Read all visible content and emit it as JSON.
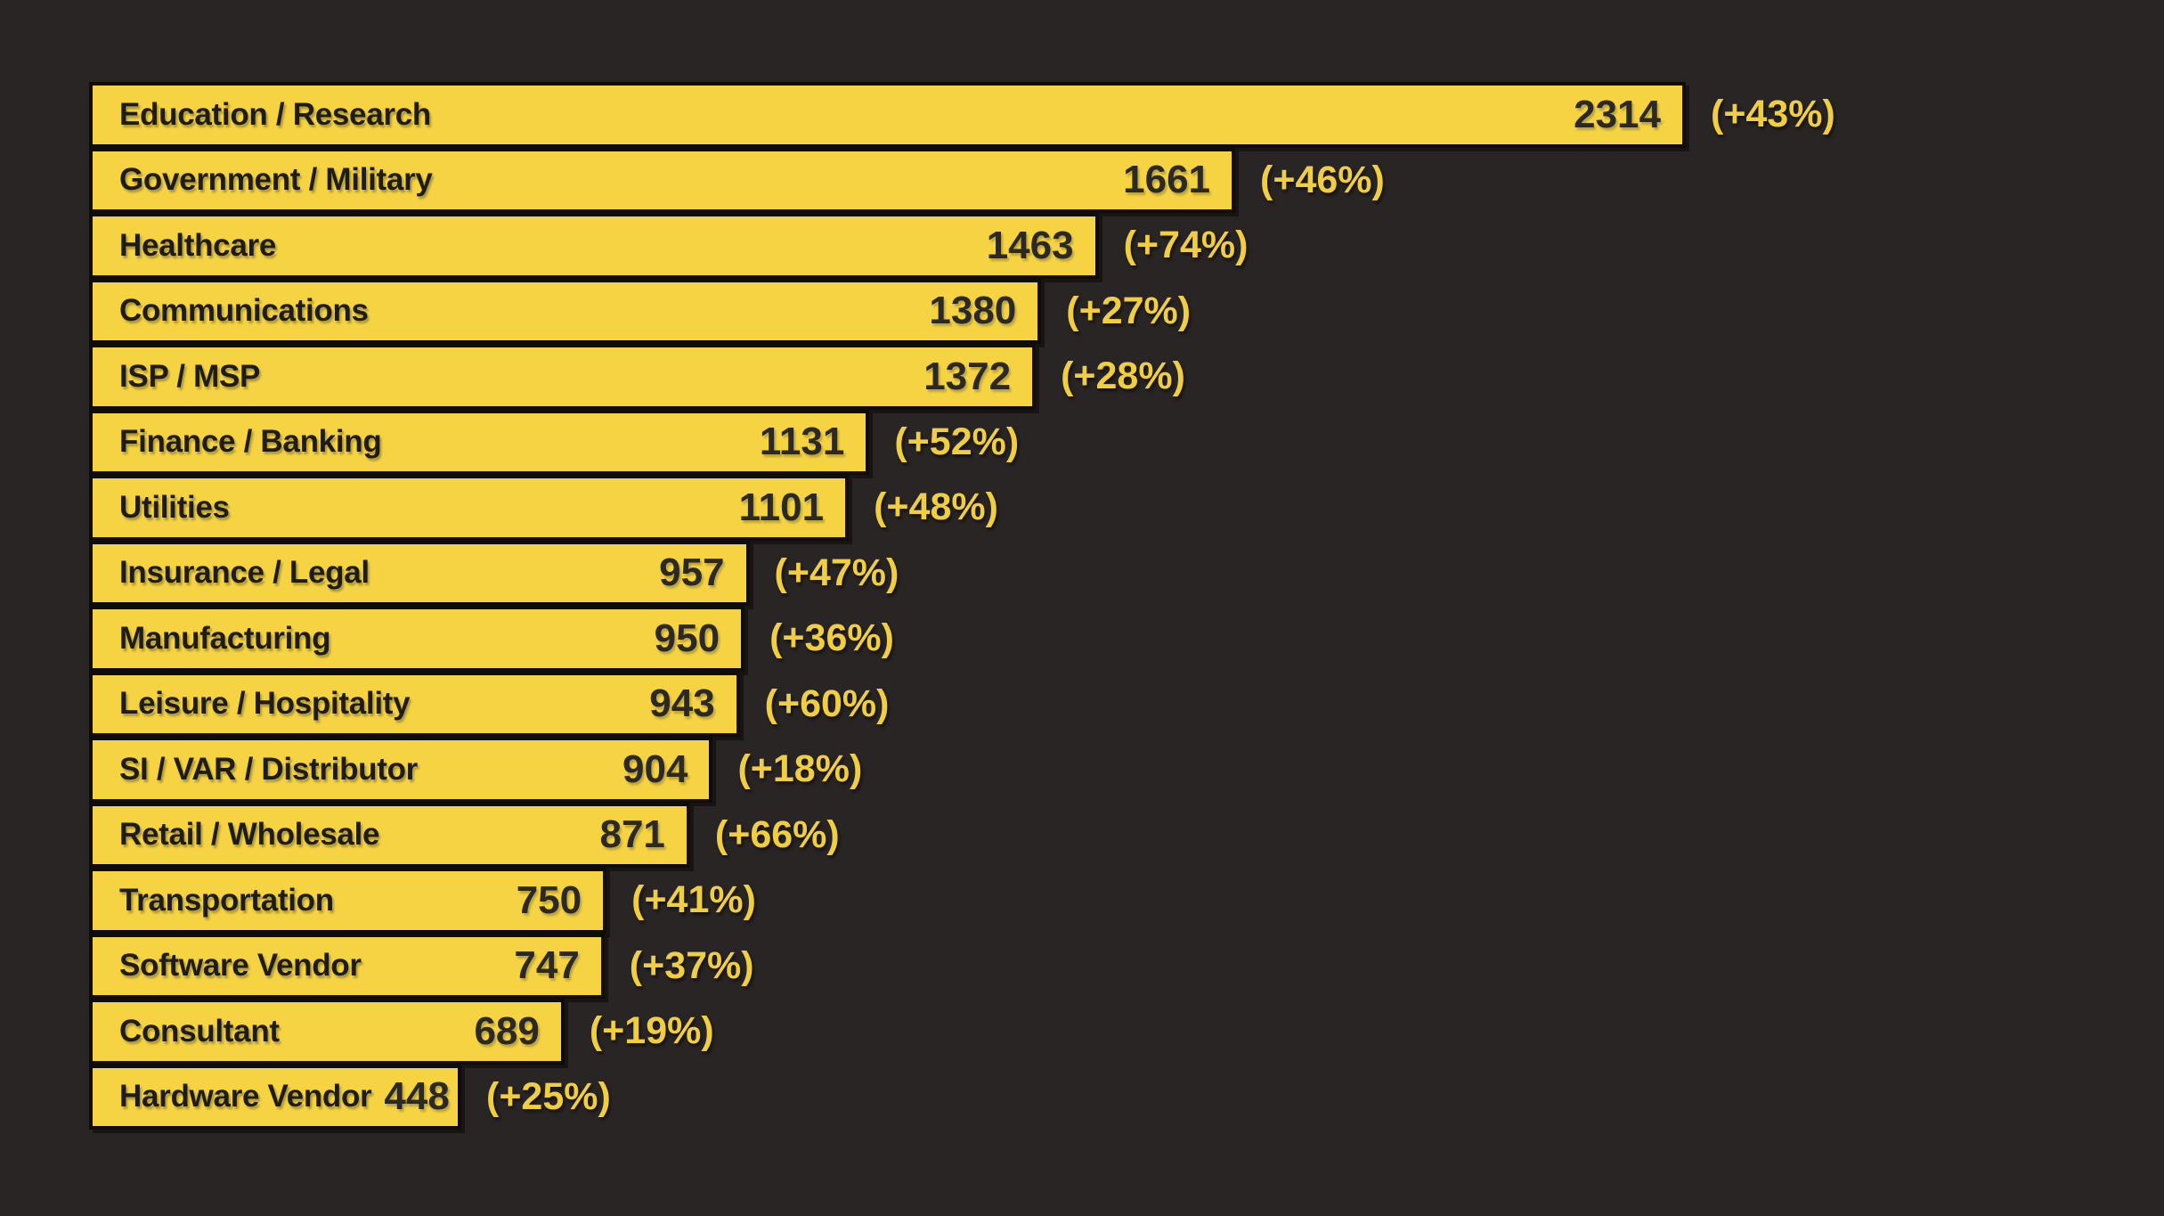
{
  "chart_data": {
    "type": "bar",
    "orientation": "horizontal",
    "title": "",
    "xlabel": "",
    "ylabel": "",
    "xlim": [
      0,
      2314
    ],
    "grid": false,
    "legend": false,
    "max_value": 2314,
    "categories": [
      "Education / Research",
      "Government / Military",
      "Healthcare",
      "Communications",
      "ISP / MSP",
      "Finance / Banking",
      "Utilities",
      "Insurance / Legal",
      "Manufacturing",
      "Leisure / Hospitality",
      "SI / VAR / Distributor",
      "Retail / Wholesale",
      "Transportation",
      "Software Vendor",
      "Consultant",
      "Hardware Vendor"
    ],
    "values": [
      2314,
      1661,
      1463,
      1380,
      1372,
      1131,
      1101,
      957,
      950,
      943,
      904,
      871,
      750,
      747,
      689,
      448
    ],
    "change_labels": [
      "(+43%)",
      "(+46%)",
      "(+74%)",
      "(+27%)",
      "(+28%)",
      "(+52%)",
      "(+48%)",
      "(+47%)",
      "(+36%)",
      "(+60%)",
      "(+18%)",
      "(+66%)",
      "(+41%)",
      "(+37%)",
      "(+19%)",
      "(+25%)"
    ],
    "bars": [
      {
        "label": "Education / Research",
        "value": 2314,
        "change": "(+43%)"
      },
      {
        "label": "Government / Military",
        "value": 1661,
        "change": "(+46%)"
      },
      {
        "label": "Healthcare",
        "value": 1463,
        "change": "(+74%)"
      },
      {
        "label": "Communications",
        "value": 1380,
        "change": "(+27%)"
      },
      {
        "label": "ISP / MSP",
        "value": 1372,
        "change": "(+28%)"
      },
      {
        "label": "Finance / Banking",
        "value": 1131,
        "change": "(+52%)"
      },
      {
        "label": "Utilities",
        "value": 1101,
        "change": "(+48%)"
      },
      {
        "label": "Insurance / Legal",
        "value": 957,
        "change": "(+47%)"
      },
      {
        "label": "Manufacturing",
        "value": 950,
        "change": "(+36%)"
      },
      {
        "label": "Leisure / Hospitality",
        "value": 943,
        "change": "(+60%)"
      },
      {
        "label": "SI / VAR / Distributor",
        "value": 904,
        "change": "(+18%)"
      },
      {
        "label": "Retail / Wholesale",
        "value": 871,
        "change": "(+66%)"
      },
      {
        "label": "Transportation",
        "value": 750,
        "change": "(+41%)"
      },
      {
        "label": "Software Vendor",
        "value": 747,
        "change": "(+37%)"
      },
      {
        "label": "Consultant",
        "value": 689,
        "change": "(+19%)"
      },
      {
        "label": "Hardware Vendor",
        "value": 448,
        "change": "(+25%)"
      }
    ],
    "colors": {
      "background": "#292525",
      "bar_fill": "#f5d342",
      "bar_border": "#0f0d0c",
      "bar_label_text": "#1e1c19",
      "bar_value_text": "#2b2925",
      "change_text": "#f1ce3f"
    }
  }
}
